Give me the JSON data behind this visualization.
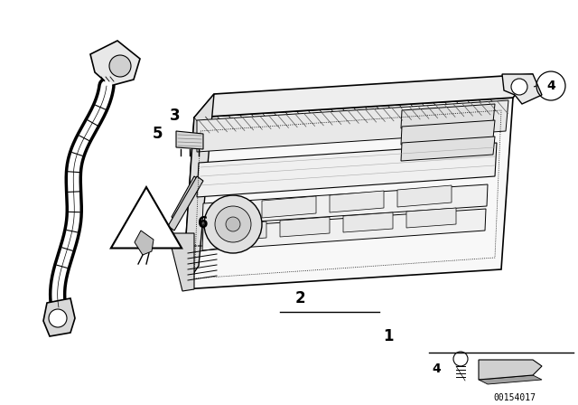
{
  "background_color": "#ffffff",
  "diagram_id": "00154017",
  "line_color": "#000000"
}
